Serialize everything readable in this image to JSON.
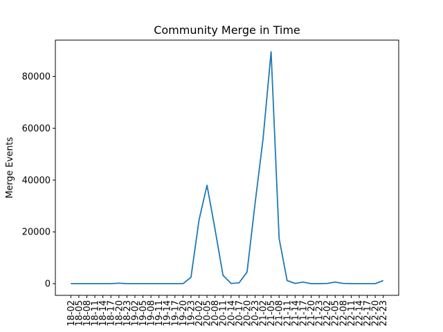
{
  "chart_data": {
    "type": "line",
    "title": "Community Merge in Time",
    "xlabel": "",
    "ylabel": "Merge Events",
    "ylim": [
      -4500,
      94000
    ],
    "yticks": [
      0,
      20000,
      40000,
      60000,
      80000
    ],
    "grid": false,
    "x": [
      "18-02",
      "18-05",
      "18-08",
      "18-11",
      "18-14",
      "18-17",
      "18-20",
      "18-23",
      "19-02",
      "19-05",
      "19-08",
      "19-11",
      "19-14",
      "19-17",
      "19-20",
      "19-23",
      "20-02",
      "20-05",
      "20-08",
      "20-11",
      "20-14",
      "20-17",
      "20-20",
      "20-23",
      "21-02",
      "21-05",
      "21-08",
      "21-11",
      "21-14",
      "21-17",
      "21-20",
      "21-23",
      "22-02",
      "22-05",
      "22-08",
      "22-11",
      "22-14",
      "22-17",
      "22-20",
      "22-23"
    ],
    "series": [
      {
        "color": "#1f77b4",
        "values": [
          0,
          0,
          0,
          0,
          0,
          0,
          200,
          0,
          0,
          0,
          0,
          0,
          0,
          0,
          0,
          2500,
          24500,
          38000,
          21000,
          3200,
          100,
          300,
          4500,
          31000,
          56000,
          89500,
          17500,
          1200,
          100,
          600,
          0,
          0,
          100,
          600,
          100,
          0,
          0,
          0,
          0,
          1200
        ]
      }
    ]
  }
}
